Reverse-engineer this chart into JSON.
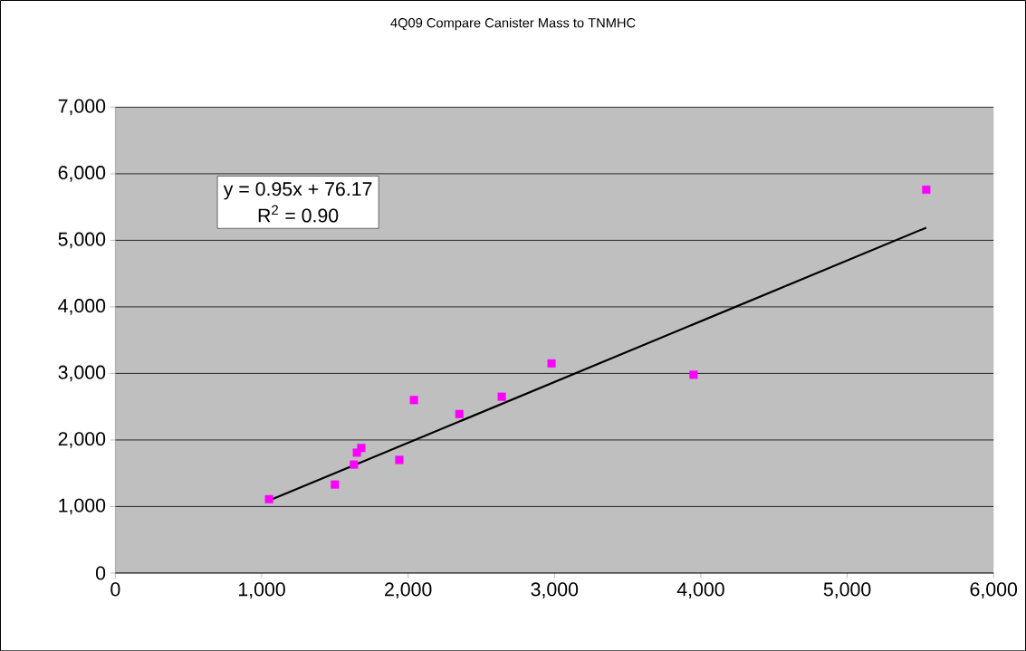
{
  "chart_data": {
    "type": "scatter",
    "title": "4Q09 Compare Canister Mass to TNMHC",
    "series": [
      {
        "color": "#ff00ff",
        "marker": "square",
        "x": [
          1050,
          1500,
          1630,
          1650,
          1680,
          1940,
          2040,
          2350,
          2640,
          2980,
          3950,
          5540
        ],
        "values": [
          1110,
          1330,
          1630,
          1810,
          1880,
          1700,
          2600,
          2390,
          2650,
          3150,
          2980,
          5760
        ]
      },
      {
        "type": "line",
        "color": "#000000",
        "marker": "none",
        "line_style": "solid",
        "x": [
          1050,
          5540
        ],
        "values": [
          1090,
          5190
        ]
      }
    ],
    "annotations": [
      "y = 0.95x + 76.17",
      "R$^{2}$ = 0.90"
    ],
    "xlim": [
      0,
      6000
    ],
    "ylim": [
      0,
      7000
    ],
    "xticks": [
      0,
      {
        "value": 1000,
        "label": "1,000"
      },
      {
        "value": 2000,
        "label": "2,000"
      },
      {
        "value": 3000,
        "label": "3,000"
      },
      {
        "value": 4000,
        "label": "4,000"
      },
      {
        "value": 5000,
        "label": "5,000"
      },
      {
        "value": 6000,
        "label": "6,000"
      }
    ],
    "yticks": [
      0,
      {
        "value": 1000,
        "label": "1,000"
      },
      {
        "value": 2000,
        "label": "2,000"
      },
      {
        "value": 3000,
        "label": "3,000"
      },
      {
        "value": 4000,
        "label": "4,000"
      },
      {
        "value": 5000,
        "label": "5,000"
      },
      {
        "value": 6000,
        "label": "6,000"
      },
      {
        "value": 7000,
        "label": "7,000"
      }
    ],
    "grid": "y"
  }
}
